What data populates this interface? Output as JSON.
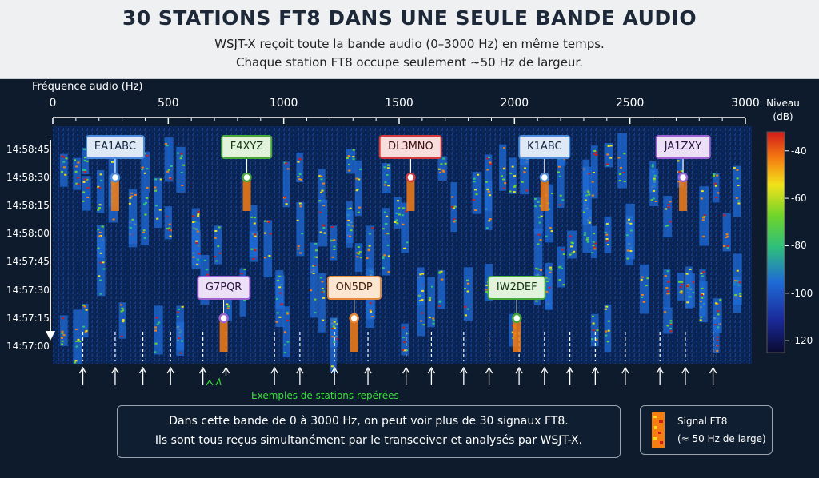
{
  "header": {
    "title": "30 STATIONS FT8 DANS UNE SEULE BANDE AUDIO",
    "subtitle_1": "WSJT-X reçoit toute la bande audio (0–3000 Hz) en même temps.",
    "subtitle_2": "Chaque station FT8 occupe seulement ~50 Hz de largeur."
  },
  "x_axis": {
    "title": "Fréquence audio (Hz)",
    "ticks": [
      "0",
      "500",
      "1000",
      "1500",
      "2000",
      "2500",
      "3000"
    ],
    "tick_values": [
      0,
      500,
      1000,
      1500,
      2000,
      2500,
      3000
    ],
    "range": [
      0,
      3000
    ]
  },
  "y_axis": {
    "ticks": [
      "14:58:45",
      "14:58:30",
      "14:58:15",
      "14:58:00",
      "14:57:45",
      "14:57:30",
      "14:57:15",
      "14:57:00"
    ]
  },
  "colorbar": {
    "title_1": "Niveau",
    "title_2": "(dB)",
    "ticks": [
      "-40",
      "-60",
      "-80",
      "-100",
      "-120"
    ],
    "tick_values": [
      -40,
      -60,
      -80,
      -100,
      -120
    ],
    "range": [
      -125,
      -32
    ]
  },
  "stations": [
    {
      "call": "EA1ABC",
      "freq": 270,
      "time": "14:58:30",
      "color": "#4a8ad8",
      "style": "blue",
      "box_above": true
    },
    {
      "call": "F4XYZ",
      "freq": 840,
      "time": "14:58:30",
      "color": "#47a83c",
      "style": "green",
      "box_above": true
    },
    {
      "call": "DL3MNO",
      "freq": 1550,
      "time": "14:58:30",
      "color": "#d23a3a",
      "style": "red",
      "box_above": true
    },
    {
      "call": "K1ABC",
      "freq": 2130,
      "time": "14:58:30",
      "color": "#4a8ad8",
      "style": "blue",
      "box_above": true
    },
    {
      "call": "JA1ZXY",
      "freq": 2730,
      "time": "14:58:30",
      "color": "#9b62d0",
      "style": "purple",
      "box_above": true
    },
    {
      "call": "G7PQR",
      "freq": 740,
      "time": "14:57:15",
      "color": "#9b62d0",
      "style": "purple",
      "box_above": true
    },
    {
      "call": "ON5DP",
      "freq": 1305,
      "time": "14:57:15",
      "color": "#e58a3c",
      "style": "orange",
      "box_above": true
    },
    {
      "call": "IW2DEF",
      "freq": 2010,
      "time": "14:57:15",
      "color": "#47a83c",
      "style": "green",
      "box_above": true
    }
  ],
  "arrow_freqs": [
    130,
    270,
    390,
    510,
    650,
    750,
    960,
    1070,
    1220,
    1365,
    1530,
    1640,
    1780,
    1890,
    2020,
    2130,
    2240,
    2350,
    2480,
    2630,
    2740,
    2860
  ],
  "examples_label": "Exemples de stations repérées",
  "info": {
    "line_1": "Dans cette bande de 0 à 3000 Hz, on peut voir plus de 30 signaux FT8.",
    "line_2": "Ils sont tous reçus simultanément par le transceiver et analysés par WSJT-X."
  },
  "legend": {
    "line_1": "Signal FT8",
    "line_2": "(≈ 50 Hz de large)"
  }
}
